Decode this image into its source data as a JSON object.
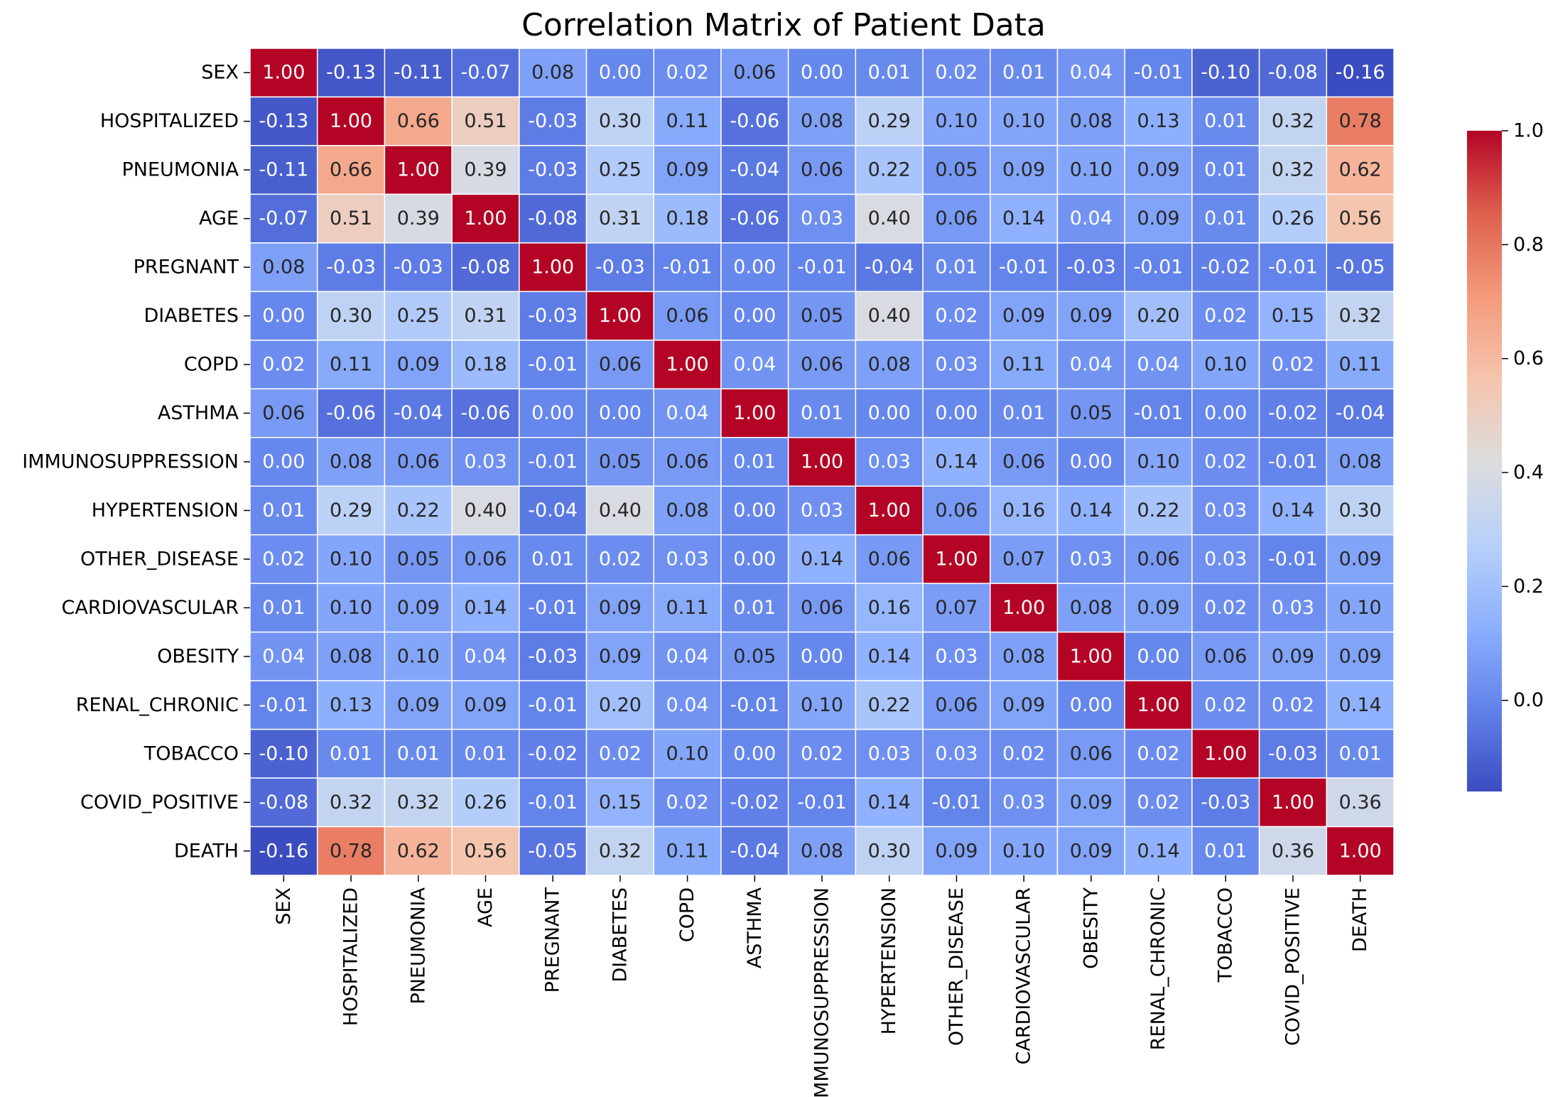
{
  "chart_data": {
    "type": "heatmap",
    "title": "Correlation Matrix of Patient Data",
    "xlabel": "",
    "ylabel": "",
    "colormap": "coolwarm",
    "value_format": "0.00",
    "cell_border_color": "#ffffff",
    "grid": false,
    "colorbar": {
      "placement": "right",
      "vmin": -0.16,
      "vmax": 1.0,
      "ticks": [
        0.0,
        0.2,
        0.4,
        0.6,
        0.8,
        1.0
      ],
      "tick_labels": [
        "0.0",
        "0.2",
        "0.4",
        "0.6",
        "0.8",
        "1.0"
      ]
    },
    "x_labels": [
      "SEX",
      "HOSPITALIZED",
      "PNEUMONIA",
      "AGE",
      "PREGNANT",
      "DIABETES",
      "COPD",
      "ASTHMA",
      "IMMUNOSUPPRESSION",
      "HYPERTENSION",
      "OTHER_DISEASE",
      "CARDIOVASCULAR",
      "OBESITY",
      "RENAL_CHRONIC",
      "TOBACCO",
      "COVID_POSITIVE",
      "DEATH"
    ],
    "y_labels": [
      "SEX",
      "HOSPITALIZED",
      "PNEUMONIA",
      "AGE",
      "PREGNANT",
      "DIABETES",
      "COPD",
      "ASTHMA",
      "IMMUNOSUPPRESSION",
      "HYPERTENSION",
      "OTHER_DISEASE",
      "CARDIOVASCULAR",
      "OBESITY",
      "RENAL_CHRONIC",
      "TOBACCO",
      "COVID_POSITIVE",
      "DEATH"
    ],
    "values": [
      [
        1.0,
        -0.13,
        -0.11,
        -0.07,
        0.08,
        -0.0,
        0.02,
        0.06,
        -0.0,
        0.01,
        0.02,
        0.01,
        0.04,
        -0.01,
        -0.1,
        -0.08,
        -0.16
      ],
      [
        -0.13,
        1.0,
        0.66,
        0.51,
        -0.03,
        0.3,
        0.11,
        -0.06,
        0.08,
        0.29,
        0.1,
        0.1,
        0.08,
        0.13,
        0.01,
        0.32,
        0.78
      ],
      [
        -0.11,
        0.66,
        1.0,
        0.39,
        -0.03,
        0.25,
        0.09,
        -0.04,
        0.06,
        0.22,
        0.05,
        0.09,
        0.1,
        0.09,
        0.01,
        0.32,
        0.62
      ],
      [
        -0.07,
        0.51,
        0.39,
        1.0,
        -0.08,
        0.31,
        0.18,
        -0.06,
        0.03,
        0.4,
        0.06,
        0.14,
        0.04,
        0.09,
        0.01,
        0.26,
        0.56
      ],
      [
        0.08,
        -0.03,
        -0.03,
        -0.08,
        1.0,
        -0.03,
        -0.01,
        -0.0,
        -0.01,
        -0.04,
        0.01,
        -0.01,
        -0.03,
        -0.01,
        -0.02,
        -0.01,
        -0.05
      ],
      [
        -0.0,
        0.3,
        0.25,
        0.31,
        -0.03,
        1.0,
        0.06,
        0.0,
        0.05,
        0.4,
        0.02,
        0.09,
        0.09,
        0.2,
        0.02,
        0.15,
        0.32
      ],
      [
        0.02,
        0.11,
        0.09,
        0.18,
        -0.01,
        0.06,
        1.0,
        0.04,
        0.06,
        0.08,
        0.03,
        0.11,
        0.04,
        0.04,
        0.1,
        0.02,
        0.11
      ],
      [
        0.06,
        -0.06,
        -0.04,
        -0.06,
        -0.0,
        0.0,
        0.04,
        1.0,
        0.01,
        0.0,
        -0.0,
        0.01,
        0.05,
        -0.01,
        0.0,
        -0.02,
        -0.04
      ],
      [
        -0.0,
        0.08,
        0.06,
        0.03,
        -0.01,
        0.05,
        0.06,
        0.01,
        1.0,
        0.03,
        0.14,
        0.06,
        0.0,
        0.1,
        0.02,
        -0.01,
        0.08
      ],
      [
        0.01,
        0.29,
        0.22,
        0.4,
        -0.04,
        0.4,
        0.08,
        0.0,
        0.03,
        1.0,
        0.06,
        0.16,
        0.14,
        0.22,
        0.03,
        0.14,
        0.3
      ],
      [
        0.02,
        0.1,
        0.05,
        0.06,
        0.01,
        0.02,
        0.03,
        -0.0,
        0.14,
        0.06,
        1.0,
        0.07,
        0.03,
        0.06,
        0.03,
        -0.01,
        0.09
      ],
      [
        0.01,
        0.1,
        0.09,
        0.14,
        -0.01,
        0.09,
        0.11,
        0.01,
        0.06,
        0.16,
        0.07,
        1.0,
        0.08,
        0.09,
        0.02,
        0.03,
        0.1
      ],
      [
        0.04,
        0.08,
        0.1,
        0.04,
        -0.03,
        0.09,
        0.04,
        0.05,
        0.0,
        0.14,
        0.03,
        0.08,
        1.0,
        0.0,
        0.06,
        0.09,
        0.09
      ],
      [
        -0.01,
        0.13,
        0.09,
        0.09,
        -0.01,
        0.2,
        0.04,
        -0.01,
        0.1,
        0.22,
        0.06,
        0.09,
        0.0,
        1.0,
        0.02,
        0.02,
        0.14
      ],
      [
        -0.1,
        0.01,
        0.01,
        0.01,
        -0.02,
        0.02,
        0.1,
        0.0,
        0.02,
        0.03,
        0.03,
        0.02,
        0.06,
        0.02,
        1.0,
        -0.03,
        0.01
      ],
      [
        -0.08,
        0.32,
        0.32,
        0.26,
        -0.01,
        0.15,
        0.02,
        -0.02,
        -0.01,
        0.14,
        -0.01,
        0.03,
        0.09,
        0.02,
        -0.03,
        1.0,
        0.36
      ],
      [
        -0.16,
        0.78,
        0.62,
        0.56,
        -0.05,
        0.32,
        0.11,
        -0.04,
        0.08,
        0.3,
        0.09,
        0.1,
        0.09,
        0.14,
        0.01,
        0.36,
        1.0
      ]
    ]
  }
}
